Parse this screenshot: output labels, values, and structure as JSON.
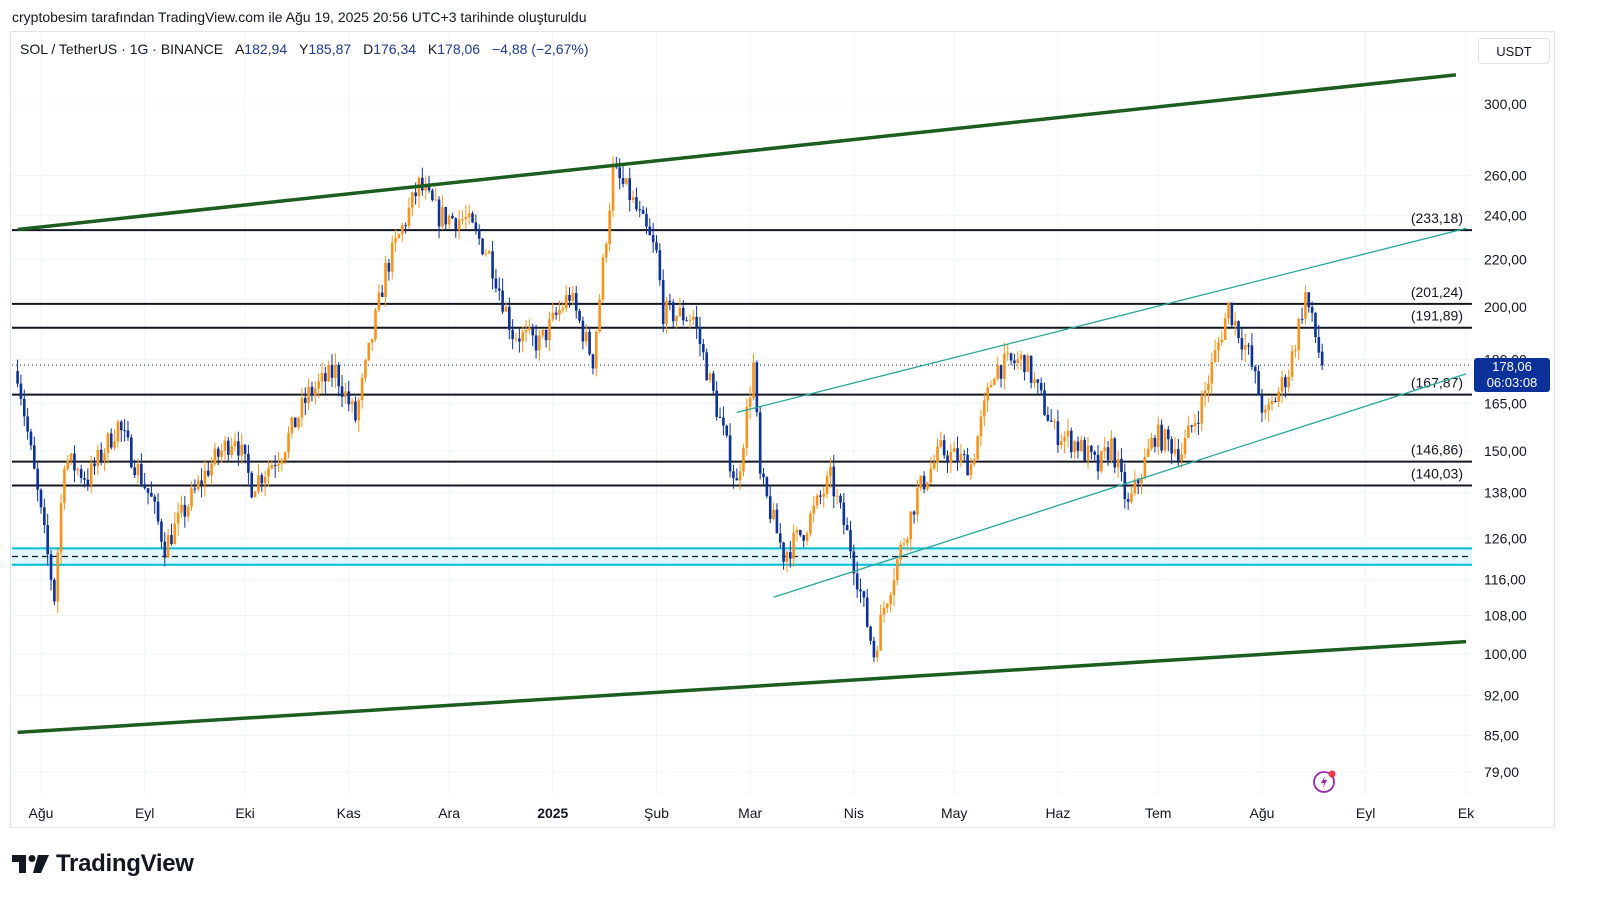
{
  "caption": "cryptobesim tarafından TradingView.com ile Ağu 19, 2025 20:56 UTC+3 tarihinde oluşturuldu",
  "legend": {
    "symbol": "SOL / TetherUS · 1G · BINANCE",
    "open_label": "A",
    "open": "182,94",
    "high_label": "Y",
    "high": "185,87",
    "low_label": "D",
    "low": "176,34",
    "close_label": "K",
    "close": "178,06",
    "change": "−4,88 (−2,67%)"
  },
  "currency": "USDT",
  "price_badge": {
    "price": "178,06",
    "countdown": "06:03:08"
  },
  "brand": "TradingView",
  "colors": {
    "up": "#f7931a",
    "down": "#0c3299",
    "channel": "#1b5e20",
    "trend": "#26a69a",
    "zone": "#00bcd4"
  },
  "chart_data": {
    "type": "candlestick",
    "scale": "log",
    "ylim": [
      76,
      330
    ],
    "x_ticks": [
      {
        "label": "Ağu",
        "date": "2024-08-01"
      },
      {
        "label": "Eyl",
        "date": "2024-09-01"
      },
      {
        "label": "Eki",
        "date": "2024-10-01"
      },
      {
        "label": "Kas",
        "date": "2024-11-01"
      },
      {
        "label": "Ara",
        "date": "2024-12-01"
      },
      {
        "label": "2025",
        "date": "2025-01-01"
      },
      {
        "label": "Şub",
        "date": "2025-02-01"
      },
      {
        "label": "Mar",
        "date": "2025-03-01"
      },
      {
        "label": "Nis",
        "date": "2025-04-01"
      },
      {
        "label": "May",
        "date": "2025-05-01"
      },
      {
        "label": "Haz",
        "date": "2025-06-01"
      },
      {
        "label": "Tem",
        "date": "2025-07-01"
      },
      {
        "label": "Ağu",
        "date": "2025-08-01"
      },
      {
        "label": "Eyl",
        "date": "2025-09-01"
      },
      {
        "label": "Ek",
        "date": "2025-10-01"
      }
    ],
    "y_ticks": [
      {
        "label": "300,00",
        "value": 300
      },
      {
        "label": "260,00",
        "value": 260
      },
      {
        "label": "240,00",
        "value": 240
      },
      {
        "label": "220,00",
        "value": 220
      },
      {
        "label": "200,00",
        "value": 200
      },
      {
        "label": "180,00",
        "value": 180
      },
      {
        "label": "165,00",
        "value": 165
      },
      {
        "label": "150,00",
        "value": 150
      },
      {
        "label": "138,00",
        "value": 138
      },
      {
        "label": "126,00",
        "value": 126
      },
      {
        "label": "116,00",
        "value": 116
      },
      {
        "label": "108,00",
        "value": 108
      },
      {
        "label": "100,00",
        "value": 100
      },
      {
        "label": "92,00",
        "value": 92
      },
      {
        "label": "85,00",
        "value": 85
      },
      {
        "label": "79,00",
        "value": 79
      }
    ],
    "levels": [
      {
        "label": "(233,18)",
        "value": 233.18
      },
      {
        "label": "(201,24)",
        "value": 201.24
      },
      {
        "label": "(191,89)",
        "value": 191.89
      },
      {
        "label": "(167,87)",
        "value": 167.87
      },
      {
        "label": "(146,86)",
        "value": 146.86
      },
      {
        "label": "(140,03)",
        "value": 140.03
      }
    ],
    "support_zone": {
      "low": 119.5,
      "high": 123.5,
      "mid": 121.5
    },
    "last_price": 178.06,
    "channel_lines": [
      {
        "from": [
          "2024-07-25",
          233.5
        ],
        "to": [
          "2025-09-28",
          318
        ]
      },
      {
        "from": [
          "2024-07-25",
          85.5
        ],
        "to": [
          "2025-10-01",
          102.5
        ]
      }
    ],
    "trend_lines": [
      {
        "from": [
          "2025-02-25",
          162
        ],
        "to": [
          "2025-10-01",
          234
        ]
      },
      {
        "from": [
          "2025-03-08",
          112
        ],
        "to": [
          "2025-10-01",
          175
        ]
      }
    ],
    "anchors": [
      [
        "2024-07-25",
        176
      ],
      [
        "2024-08-05",
        112
      ],
      [
        "2024-08-08",
        148
      ],
      [
        "2024-08-15",
        142
      ],
      [
        "2024-08-24",
        158
      ],
      [
        "2024-09-03",
        136
      ],
      [
        "2024-09-07",
        124
      ],
      [
        "2024-09-20",
        145
      ],
      [
        "2024-09-28",
        155
      ],
      [
        "2024-10-03",
        140
      ],
      [
        "2024-10-12",
        150
      ],
      [
        "2024-10-20",
        168
      ],
      [
        "2024-10-28",
        176
      ],
      [
        "2024-11-03",
        160
      ],
      [
        "2024-11-12",
        215
      ],
      [
        "2024-11-22",
        255
      ],
      [
        "2024-11-28",
        240
      ],
      [
        "2024-12-06",
        238
      ],
      [
        "2024-12-13",
        222
      ],
      [
        "2024-12-20",
        190
      ],
      [
        "2024-12-28",
        186
      ],
      [
        "2025-01-06",
        205
      ],
      [
        "2025-01-13",
        180
      ],
      [
        "2025-01-19",
        262
      ],
      [
        "2025-01-24",
        250
      ],
      [
        "2025-02-01",
        222
      ],
      [
        "2025-02-03",
        198
      ],
      [
        "2025-02-12",
        196
      ],
      [
        "2025-02-25",
        140
      ],
      [
        "2025-03-02",
        178
      ],
      [
        "2025-03-04",
        142
      ],
      [
        "2025-03-11",
        122
      ],
      [
        "2025-03-17",
        128
      ],
      [
        "2025-03-25",
        142
      ],
      [
        "2025-03-31",
        124
      ],
      [
        "2025-04-07",
        100
      ],
      [
        "2025-04-10",
        110
      ],
      [
        "2025-04-20",
        138
      ],
      [
        "2025-04-27",
        150
      ],
      [
        "2025-05-06",
        146
      ],
      [
        "2025-05-13",
        177
      ],
      [
        "2025-05-22",
        180
      ],
      [
        "2025-05-31",
        156
      ],
      [
        "2025-06-07",
        152
      ],
      [
        "2025-06-13",
        145
      ],
      [
        "2025-06-17",
        152
      ],
      [
        "2025-06-22",
        134
      ],
      [
        "2025-06-30",
        155
      ],
      [
        "2025-07-08",
        150
      ],
      [
        "2025-07-14",
        165
      ],
      [
        "2025-07-22",
        200
      ],
      [
        "2025-07-28",
        182
      ],
      [
        "2025-08-02",
        160
      ],
      [
        "2025-08-09",
        176
      ],
      [
        "2025-08-14",
        205
      ],
      [
        "2025-08-19",
        178
      ]
    ]
  }
}
